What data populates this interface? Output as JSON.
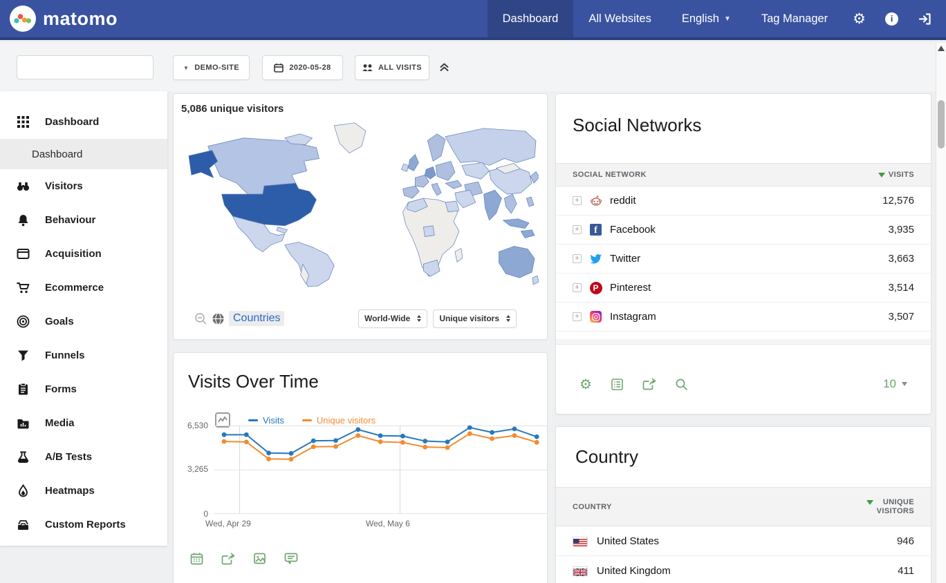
{
  "navbar": {
    "logo_text": "matomo",
    "items": [
      {
        "label": "Dashboard"
      },
      {
        "label": "All Websites"
      },
      {
        "label": "English"
      },
      {
        "label": "Tag Manager"
      }
    ]
  },
  "toolbar": {
    "search_value": "",
    "site_selector": "DEMO-SITE",
    "date": "2020-05-28",
    "segment": "ALL VISITS"
  },
  "sidebar": {
    "items": [
      {
        "label": "Dashboard"
      },
      {
        "label": "Visitors"
      },
      {
        "label": "Behaviour"
      },
      {
        "label": "Acquisition"
      },
      {
        "label": "Ecommerce"
      },
      {
        "label": "Goals"
      },
      {
        "label": "Funnels"
      },
      {
        "label": "Forms"
      },
      {
        "label": "Media"
      },
      {
        "label": "A/B Tests"
      },
      {
        "label": "Heatmaps"
      },
      {
        "label": "Custom Reports"
      }
    ],
    "active_subitem": "Dashboard"
  },
  "map_widget": {
    "title": "5,086 unique visitors",
    "link_label": "Countries",
    "region_select": "World-Wide",
    "metric_select": "Unique visitors"
  },
  "chart_data": {
    "type": "line",
    "title": "Visits Over Time",
    "y_max": 6530,
    "y_ticks": [
      "6,530",
      "3,265",
      "0"
    ],
    "x_tick_labels": [
      "Wed, Apr 29",
      "Wed, May 6"
    ],
    "grid": true,
    "legend_position": "top-left",
    "series": [
      {
        "name": "Visits",
        "color": "#2678bd",
        "values": [
          5850,
          5850,
          4500,
          4470,
          5400,
          5420,
          6230,
          5780,
          5750,
          5380,
          5320,
          6380,
          6020,
          6280,
          5700
        ]
      },
      {
        "name": "Unique visitors",
        "color": "#f38b2f",
        "values": [
          5350,
          5320,
          4060,
          4040,
          4960,
          4980,
          5790,
          5330,
          5280,
          4940,
          4900,
          5930,
          5560,
          5790,
          5290
        ]
      }
    ]
  },
  "social_widget": {
    "title": "Social Networks",
    "col_network": "SOCIAL NETWORK",
    "col_visits": "VISITS",
    "rows": [
      {
        "network": "reddit",
        "visits": "12,576"
      },
      {
        "network": "Facebook",
        "visits": "3,935"
      },
      {
        "network": "Twitter",
        "visits": "3,663"
      },
      {
        "network": "Pinterest",
        "visits": "3,514"
      },
      {
        "network": "Instagram",
        "visits": "3,507"
      }
    ],
    "page_size": "10"
  },
  "country_widget": {
    "title": "Country",
    "col_country": "COUNTRY",
    "col_value_line1": "UNIQUE",
    "col_value_line2": "VISITORS",
    "rows": [
      {
        "country": "United States",
        "value": "946"
      },
      {
        "country": "United Kingdom",
        "value": "411"
      }
    ]
  },
  "colors": {
    "navbar": "#3a53a0",
    "chart_blue": "#2678bd",
    "chart_orange": "#f38b2f",
    "accent_green": "#72a472",
    "link_blue": "#2b66c4",
    "map_dark": "#2d5da9"
  }
}
